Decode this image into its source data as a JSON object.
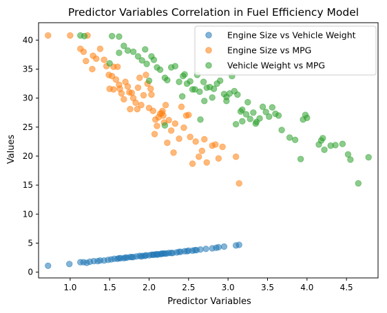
{
  "chart_data": {
    "type": "scatter",
    "title": "Predictor Variables Correlation in Fuel Efficiency Model",
    "xlabel": "Predictor Variables",
    "ylabel": "Values",
    "xlim": [
      0.6,
      4.9
    ],
    "ylim": [
      -1,
      43
    ],
    "xticks": [
      1.0,
      1.5,
      2.0,
      2.5,
      3.0,
      3.5,
      4.0,
      4.5
    ],
    "yticks": [
      0,
      5,
      10,
      15,
      20,
      25,
      30,
      35,
      40
    ],
    "grid": false,
    "legend_position": "top-right",
    "series": [
      {
        "name": "Engine Size vs Vehicle Weight",
        "color": "#1f77b4",
        "points": [
          [
            0.72,
            1.1
          ],
          [
            0.99,
            1.4
          ],
          [
            1.13,
            1.7
          ],
          [
            1.17,
            1.7
          ],
          [
            1.21,
            1.6
          ],
          [
            1.25,
            1.8
          ],
          [
            1.3,
            1.9
          ],
          [
            1.38,
            2.0
          ],
          [
            1.43,
            2.0
          ],
          [
            1.48,
            2.1
          ],
          [
            1.52,
            2.2
          ],
          [
            1.56,
            2.3
          ],
          [
            1.6,
            2.3
          ],
          [
            1.64,
            2.4
          ],
          [
            1.68,
            2.4
          ],
          [
            1.72,
            2.5
          ],
          [
            1.76,
            2.6
          ],
          [
            1.8,
            2.6
          ],
          [
            1.84,
            2.7
          ],
          [
            1.88,
            2.8
          ],
          [
            1.92,
            2.8
          ],
          [
            1.96,
            2.9
          ],
          [
            2.0,
            2.9
          ],
          [
            2.03,
            3.0
          ],
          [
            2.06,
            3.0
          ],
          [
            2.09,
            3.1
          ],
          [
            2.12,
            3.1
          ],
          [
            2.15,
            3.1
          ],
          [
            2.18,
            3.2
          ],
          [
            2.2,
            3.2
          ],
          [
            2.22,
            3.2
          ],
          [
            2.25,
            3.3
          ],
          [
            2.3,
            3.3
          ],
          [
            2.35,
            3.4
          ],
          [
            2.4,
            3.5
          ],
          [
            2.45,
            3.6
          ],
          [
            2.5,
            3.7
          ],
          [
            2.55,
            3.7
          ],
          [
            2.6,
            3.8
          ],
          [
            2.65,
            3.9
          ],
          [
            2.72,
            4.0
          ],
          [
            2.8,
            4.1
          ],
          [
            2.88,
            4.3
          ],
          [
            2.95,
            4.4
          ],
          [
            3.1,
            4.6
          ],
          [
            3.14,
            4.7
          ],
          [
            1.7,
            2.5
          ],
          [
            1.9,
            2.7
          ],
          [
            2.05,
            3.0
          ],
          [
            2.28,
            3.3
          ],
          [
            2.48,
            3.6
          ],
          [
            2.58,
            3.8
          ],
          [
            2.85,
            4.2
          ],
          [
            1.35,
            1.9
          ],
          [
            2.16,
            3.2
          ],
          [
            2.38,
            3.5
          ],
          [
            1.62,
            2.4
          ],
          [
            1.78,
            2.6
          ],
          [
            1.95,
            2.8
          ],
          [
            2.1,
            3.0
          ]
        ]
      },
      {
        "name": "Engine Size vs MPG",
        "color": "#ff7f0e",
        "points": [
          [
            0.72,
            40.8
          ],
          [
            1.0,
            40.8
          ],
          [
            1.13,
            38.5
          ],
          [
            1.17,
            38.0
          ],
          [
            1.22,
            40.8
          ],
          [
            1.2,
            36.4
          ],
          [
            1.29,
            37.3
          ],
          [
            1.33,
            36.8
          ],
          [
            1.38,
            38.5
          ],
          [
            1.43,
            36.6
          ],
          [
            1.46,
            35.5
          ],
          [
            1.49,
            34.0
          ],
          [
            1.53,
            33.8
          ],
          [
            1.55,
            31.5
          ],
          [
            1.58,
            33.2
          ],
          [
            1.6,
            35.4
          ],
          [
            1.62,
            32.3
          ],
          [
            1.65,
            30.8
          ],
          [
            1.68,
            29.8
          ],
          [
            1.7,
            32.8
          ],
          [
            1.73,
            32.0
          ],
          [
            1.76,
            28.1
          ],
          [
            1.78,
            30.9
          ],
          [
            1.8,
            30.0
          ],
          [
            1.83,
            29.2
          ],
          [
            1.86,
            31.8
          ],
          [
            1.88,
            33.5
          ],
          [
            1.9,
            28.8
          ],
          [
            1.93,
            30.5
          ],
          [
            1.96,
            34.0
          ],
          [
            1.98,
            32.5
          ],
          [
            2.0,
            28.3
          ],
          [
            2.03,
            30.6
          ],
          [
            2.05,
            27.8
          ],
          [
            2.07,
            23.8
          ],
          [
            2.08,
            26.3
          ],
          [
            2.1,
            25.2
          ],
          [
            2.12,
            26.7
          ],
          [
            2.14,
            27.3
          ],
          [
            2.17,
            27.8
          ],
          [
            2.19,
            25.8
          ],
          [
            2.21,
            28.8
          ],
          [
            2.23,
            22.3
          ],
          [
            2.25,
            26.2
          ],
          [
            2.28,
            24.4
          ],
          [
            2.31,
            20.6
          ],
          [
            2.33,
            25.6
          ],
          [
            2.38,
            23.0
          ],
          [
            2.41,
            28.5
          ],
          [
            2.44,
            24.9
          ],
          [
            2.47,
            27.0
          ],
          [
            2.5,
            27.1
          ],
          [
            2.52,
            23.3
          ],
          [
            2.55,
            18.7
          ],
          [
            2.59,
            22.5
          ],
          [
            2.63,
            19.9
          ],
          [
            2.67,
            20.9
          ],
          [
            2.7,
            22.9
          ],
          [
            2.73,
            18.9
          ],
          [
            2.8,
            21.8
          ],
          [
            2.84,
            22.0
          ],
          [
            2.88,
            19.6
          ],
          [
            2.93,
            21.6
          ],
          [
            3.1,
            19.9
          ],
          [
            3.14,
            15.3
          ],
          [
            1.28,
            35.0
          ],
          [
            1.5,
            31.6
          ],
          [
            1.63,
            31.6
          ],
          [
            1.75,
            31.0
          ],
          [
            2.02,
            31.6
          ],
          [
            2.16,
            27.4
          ],
          [
            2.18,
            27.0
          ],
          [
            1.85,
            28.1
          ],
          [
            1.55,
            35.4
          ]
        ]
      },
      {
        "name": "Vehicle Weight vs MPG",
        "color": "#2ca02c",
        "points": [
          [
            1.13,
            40.8
          ],
          [
            1.18,
            40.7
          ],
          [
            1.53,
            40.7
          ],
          [
            1.62,
            40.6
          ],
          [
            1.68,
            39.0
          ],
          [
            1.73,
            38.2
          ],
          [
            1.8,
            38.0
          ],
          [
            1.86,
            37.2
          ],
          [
            1.91,
            36.5
          ],
          [
            1.95,
            38.4
          ],
          [
            1.97,
            35.9
          ],
          [
            2.03,
            37.2
          ],
          [
            2.06,
            36.6
          ],
          [
            2.1,
            35.3
          ],
          [
            2.14,
            34.9
          ],
          [
            2.2,
            33.5
          ],
          [
            2.23,
            33.1
          ],
          [
            2.28,
            35.3
          ],
          [
            2.33,
            35.5
          ],
          [
            2.38,
            32.8
          ],
          [
            2.43,
            33.8
          ],
          [
            2.45,
            34.1
          ],
          [
            2.48,
            32.5
          ],
          [
            2.52,
            32.9
          ],
          [
            2.55,
            31.5
          ],
          [
            2.58,
            31.5
          ],
          [
            2.61,
            34.0
          ],
          [
            2.64,
            31.1
          ],
          [
            2.69,
            32.8
          ],
          [
            2.73,
            31.8
          ],
          [
            2.77,
            31.9
          ],
          [
            2.8,
            30.1
          ],
          [
            2.82,
            31.6
          ],
          [
            2.86,
            32.5
          ],
          [
            2.9,
            33.0
          ],
          [
            2.95,
            30.7
          ],
          [
            2.98,
            30.2
          ],
          [
            3.02,
            30.8
          ],
          [
            3.05,
            33.8
          ],
          [
            3.08,
            31.2
          ],
          [
            3.12,
            30.6
          ],
          [
            3.16,
            27.7
          ],
          [
            3.18,
            28.0
          ],
          [
            3.23,
            27.2
          ],
          [
            3.28,
            26.4
          ],
          [
            3.32,
            27.5
          ],
          [
            3.36,
            25.9
          ],
          [
            3.4,
            26.5
          ],
          [
            3.44,
            28.5
          ],
          [
            3.48,
            27.6
          ],
          [
            3.52,
            26.8
          ],
          [
            3.56,
            28.4
          ],
          [
            3.6,
            27.3
          ],
          [
            3.64,
            27.0
          ],
          [
            3.68,
            24.5
          ],
          [
            3.78,
            23.2
          ],
          [
            3.85,
            22.8
          ],
          [
            3.95,
            26.3
          ],
          [
            3.98,
            27.1
          ],
          [
            4.0,
            26.6
          ],
          [
            4.15,
            22.0
          ],
          [
            4.18,
            22.7
          ],
          [
            4.22,
            21.1
          ],
          [
            4.3,
            21.8
          ],
          [
            4.36,
            21.9
          ],
          [
            4.45,
            22.1
          ],
          [
            4.52,
            20.3
          ],
          [
            4.55,
            19.4
          ],
          [
            4.65,
            15.3
          ],
          [
            4.78,
            19.8
          ],
          [
            3.92,
            19.5
          ],
          [
            2.98,
            29.5
          ],
          [
            2.7,
            29.5
          ],
          [
            3.25,
            29.3
          ],
          [
            3.18,
            26.0
          ],
          [
            3.35,
            25.6
          ],
          [
            2.65,
            26.3
          ],
          [
            3.1,
            25.5
          ],
          [
            2.2,
            25.3
          ],
          [
            2.42,
            30.3
          ],
          [
            4.2,
            23.1
          ],
          [
            2.0,
            33.0
          ],
          [
            1.5,
            36.0
          ],
          [
            1.62,
            37.8
          ]
        ]
      }
    ]
  }
}
